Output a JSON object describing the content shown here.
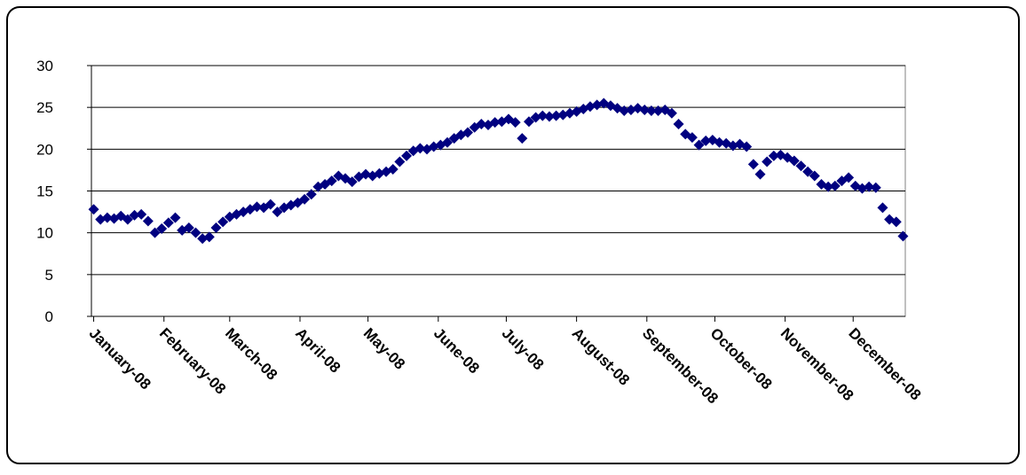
{
  "chart_data": {
    "type": "scatter",
    "color": "#000080",
    "grid": true,
    "x": [
      1,
      4,
      7,
      10,
      13,
      16,
      19,
      22,
      25,
      28,
      31,
      34,
      37,
      40,
      43,
      46,
      49,
      52,
      55,
      58,
      61,
      64,
      67,
      70,
      73,
      76,
      79,
      82,
      85,
      88,
      91,
      94,
      97,
      100,
      103,
      106,
      109,
      112,
      115,
      118,
      121,
      124,
      127,
      130,
      133,
      136,
      139,
      142,
      145,
      148,
      151,
      154,
      157,
      160,
      163,
      166,
      169,
      172,
      175,
      178,
      181,
      184,
      187,
      190,
      193,
      196,
      199,
      202,
      205,
      208,
      211,
      214,
      217,
      220,
      223,
      226,
      229,
      232,
      235,
      238,
      241,
      244,
      247,
      250,
      253,
      256,
      259,
      262,
      265,
      268,
      271,
      274,
      277,
      280,
      283,
      286,
      289,
      292,
      295,
      298,
      301,
      304,
      307,
      310,
      313,
      316,
      319,
      322,
      325,
      328,
      331,
      334,
      337,
      340,
      343,
      346,
      349,
      352,
      355,
      358
    ],
    "values": [
      12.8,
      11.6,
      11.8,
      11.7,
      12.0,
      11.6,
      12.1,
      12.2,
      11.4,
      10.0,
      10.5,
      11.2,
      11.8,
      10.3,
      10.6,
      10.0,
      9.3,
      9.5,
      10.6,
      11.3,
      11.9,
      12.2,
      12.5,
      12.8,
      13.1,
      13.0,
      13.4,
      12.5,
      13.0,
      13.3,
      13.6,
      14.0,
      14.6,
      15.5,
      15.8,
      16.2,
      16.8,
      16.5,
      16.1,
      16.7,
      17.0,
      16.8,
      17.1,
      17.3,
      17.6,
      18.5,
      19.2,
      19.8,
      20.1,
      20.0,
      20.3,
      20.5,
      20.8,
      21.3,
      21.7,
      22.0,
      22.6,
      23.0,
      22.9,
      23.2,
      23.3,
      23.6,
      23.2,
      21.3,
      23.3,
      23.8,
      24.0,
      23.9,
      24.0,
      24.1,
      24.3,
      24.5,
      24.8,
      25.1,
      25.3,
      25.5,
      25.2,
      24.9,
      24.6,
      24.7,
      24.9,
      24.7,
      24.6,
      24.6,
      24.7,
      24.3,
      23.0,
      21.8,
      21.4,
      20.5,
      21.0,
      21.1,
      20.8,
      20.7,
      20.4,
      20.6,
      20.3,
      18.2,
      17.0,
      18.5,
      19.2,
      19.3,
      19.0,
      18.6,
      18.0,
      17.3,
      16.8,
      15.8,
      15.5,
      15.6,
      16.2,
      16.6,
      15.6,
      15.3,
      15.5,
      15.4,
      13.0,
      11.6,
      11.3,
      9.6
    ],
    "xlim": [
      0,
      359
    ],
    "xticks": [
      {
        "value": 1,
        "label": "January-08"
      },
      {
        "value": 32,
        "label": "February-08"
      },
      {
        "value": 61,
        "label": "March-08"
      },
      {
        "value": 92,
        "label": "April-08"
      },
      {
        "value": 122,
        "label": "May-08"
      },
      {
        "value": 153,
        "label": "June-08"
      },
      {
        "value": 183,
        "label": "July-08"
      },
      {
        "value": 214,
        "label": "August-08"
      },
      {
        "value": 245,
        "label": "September-08"
      },
      {
        "value": 275,
        "label": "October-08"
      },
      {
        "value": 306,
        "label": "November-08"
      },
      {
        "value": 336,
        "label": "December-08"
      }
    ],
    "ylim": [
      0,
      30
    ],
    "yticks": [
      0,
      5,
      10,
      15,
      20,
      25,
      30
    ]
  }
}
